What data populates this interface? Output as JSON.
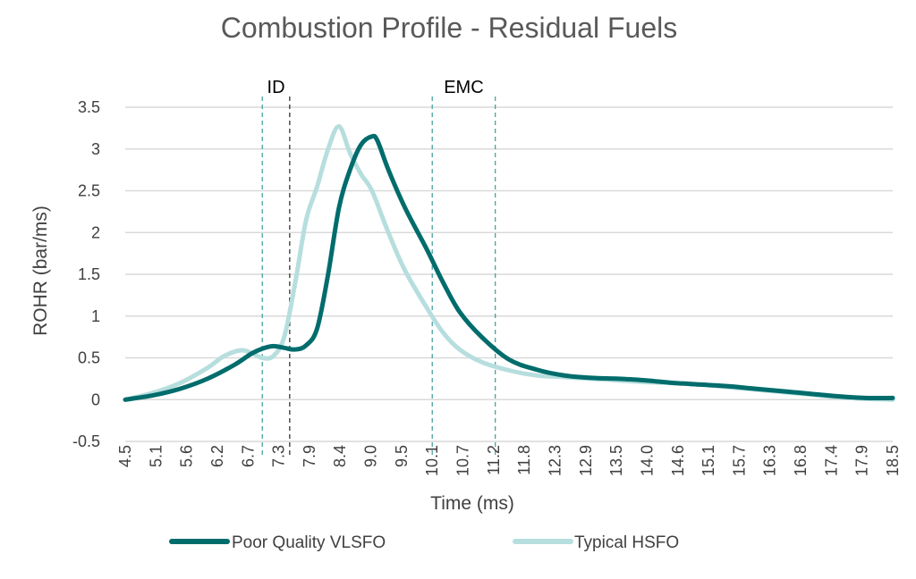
{
  "chart_data": {
    "type": "line",
    "title": "Combustion Profile - Residual Fuels",
    "xlabel": "Time (ms)",
    "ylabel": "ROHR (bar/ms)",
    "ylim": [
      -0.5,
      3.5
    ],
    "xlim": [
      4.5,
      18.5
    ],
    "yticks": [
      "-0.5",
      "0",
      "0.5",
      "1",
      "1.5",
      "2",
      "2.5",
      "3",
      "3.5"
    ],
    "xticks": [
      "4.5",
      "5.1",
      "5.6",
      "6.2",
      "6.7",
      "7.3",
      "7.9",
      "8.4",
      "9.0",
      "9.5",
      "10.1",
      "10.7",
      "11.2",
      "11.8",
      "12.3",
      "12.9",
      "13.5",
      "14.0",
      "14.6",
      "15.1",
      "15.7",
      "16.3",
      "16.8",
      "17.4",
      "17.9",
      "18.5"
    ],
    "grid": true,
    "legend_position": "bottom",
    "series": [
      {
        "name": "Poor Quality VLSFO",
        "color": "#006c6c",
        "x": [
          4.5,
          5.0,
          5.5,
          6.0,
          6.5,
          6.8,
          7.0,
          7.2,
          7.4,
          7.6,
          7.8,
          8.0,
          8.2,
          8.4,
          8.6,
          8.8,
          9.0,
          9.1,
          9.3,
          9.6,
          10.0,
          10.3,
          10.6,
          11.0,
          11.5,
          12.0,
          12.5,
          13.0,
          13.5,
          14.0,
          14.5,
          15.0,
          15.5,
          16.0,
          16.5,
          17.0,
          17.5,
          18.0,
          18.5
        ],
        "y": [
          0.0,
          0.05,
          0.13,
          0.25,
          0.42,
          0.55,
          0.61,
          0.64,
          0.62,
          0.6,
          0.65,
          0.85,
          1.5,
          2.3,
          2.75,
          3.05,
          3.15,
          3.1,
          2.75,
          2.3,
          1.8,
          1.4,
          1.05,
          0.75,
          0.48,
          0.36,
          0.29,
          0.26,
          0.25,
          0.23,
          0.2,
          0.18,
          0.16,
          0.13,
          0.1,
          0.07,
          0.04,
          0.02,
          0.02
        ]
      },
      {
        "name": "Typical HSFO",
        "color": "#b7dede",
        "x": [
          4.5,
          5.0,
          5.5,
          6.0,
          6.3,
          6.6,
          6.8,
          7.0,
          7.2,
          7.4,
          7.6,
          7.8,
          8.0,
          8.2,
          8.4,
          8.6,
          8.8,
          9.0,
          9.3,
          9.6,
          10.0,
          10.3,
          10.6,
          11.0,
          11.5,
          12.0,
          12.5,
          13.0,
          13.5,
          14.0,
          14.5,
          15.0,
          15.5,
          16.0,
          16.5,
          17.0,
          17.5,
          18.0,
          18.5
        ],
        "y": [
          0.0,
          0.08,
          0.2,
          0.38,
          0.52,
          0.59,
          0.56,
          0.5,
          0.52,
          0.75,
          1.4,
          2.15,
          2.55,
          3.0,
          3.27,
          2.95,
          2.7,
          2.5,
          2.0,
          1.55,
          1.1,
          0.8,
          0.6,
          0.45,
          0.35,
          0.29,
          0.27,
          0.25,
          0.23,
          0.21,
          0.2,
          0.18,
          0.15,
          0.12,
          0.09,
          0.06,
          0.03,
          0.01,
          0.0
        ]
      }
    ],
    "annotations": [
      {
        "label": "ID",
        "x_start": 7.0,
        "x_end": 7.5
      },
      {
        "label": "EMC",
        "x_start": 10.1,
        "x_end": 11.25
      }
    ]
  }
}
